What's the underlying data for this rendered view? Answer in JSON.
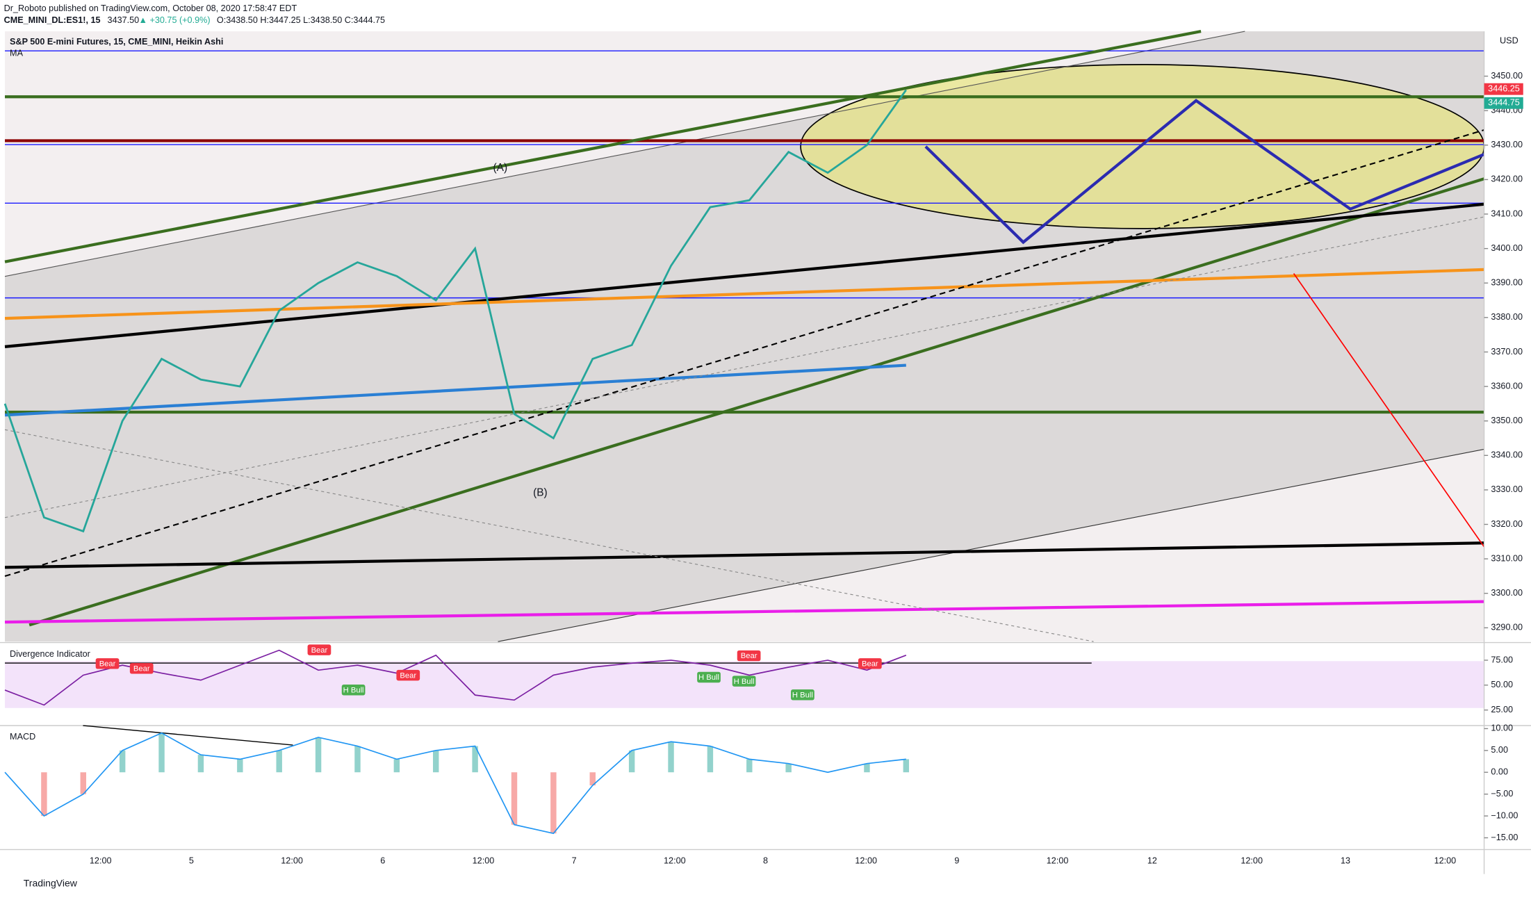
{
  "header": {
    "publisher": "Dr_Roboto published on TradingView.com, October 08, 2020 17:58:47 EDT",
    "symbol": "CME_MINI_DL:ES1!, 15",
    "last": "3437.50",
    "change": "▲ +30.75 (+0.9%)",
    "ohlc": "O:3438.50 H:3447.25 L:3438.50 C:3444.75"
  },
  "footer": {
    "brand": "TradingView"
  },
  "chart_data": [
    {
      "type": "line",
      "title": "S&P 500 E-mini Futures, 15, CME_MINI, Heikin Ashi",
      "indicator": "MA",
      "currency": "USD",
      "annotations": [
        "(A)",
        "(B)"
      ],
      "price_tags": [
        {
          "value": 3446.25,
          "label": "3446.25",
          "color": "#f23645"
        },
        {
          "value": 3444.75,
          "label": "3444.75",
          "color": "#22ab94"
        }
      ],
      "color": "#26a69a",
      "values": [
        3355,
        3322,
        3318,
        3350,
        3368,
        3362,
        3360,
        3382,
        3390,
        3396,
        3392,
        3385,
        3400,
        3352,
        3345,
        3368,
        3372,
        3395,
        3412,
        3414,
        3428,
        3422,
        3430,
        3446
      ],
      "ylim": [
        3286,
        3463
      ],
      "yticks": [
        {
          "value": 3290,
          "label": "3290.00"
        },
        {
          "value": 3300,
          "label": "3300.00"
        },
        {
          "value": 3310,
          "label": "3310.00"
        },
        {
          "value": 3320,
          "label": "3320.00"
        },
        {
          "value": 3330,
          "label": "3330.00"
        },
        {
          "value": 3340,
          "label": "3340.00"
        },
        {
          "value": 3350,
          "label": "3350.00"
        },
        {
          "value": 3360,
          "label": "3360.00"
        },
        {
          "value": 3370,
          "label": "3370.00"
        },
        {
          "value": 3380,
          "label": "3380.00"
        },
        {
          "value": 3390,
          "label": "3390.00"
        },
        {
          "value": 3400,
          "label": "3400.00"
        },
        {
          "value": 3410,
          "label": "3410.00"
        },
        {
          "value": 3420,
          "label": "3420.00"
        },
        {
          "value": 3430,
          "label": "3430.00"
        },
        {
          "value": 3440,
          "label": "3440.00"
        },
        {
          "value": 3450,
          "label": "3450.00"
        }
      ],
      "xticks": [
        "12:00",
        "5",
        "12:00",
        "6",
        "12:00",
        "7",
        "12:00",
        "8",
        "12:00",
        "9",
        "12:00",
        "12",
        "12:00",
        "13",
        "12:00"
      ]
    },
    {
      "type": "line",
      "title": "Divergence Indicator",
      "color": "#7b1fa2",
      "signals": [
        "Bear",
        "Bear",
        "Bear",
        "H Bull",
        "Bear",
        "H Bull",
        "H Bull",
        "Bear",
        "H Bull",
        "Bear"
      ],
      "values": [
        45,
        30,
        60,
        70,
        62,
        55,
        70,
        85,
        65,
        70,
        62,
        80,
        40,
        35,
        60,
        68,
        72,
        75,
        70,
        60,
        68,
        75,
        65,
        80
      ],
      "ylim": [
        9.4,
        92.7
      ],
      "yticks": [
        {
          "value": 25,
          "label": "25.00"
        },
        {
          "value": 50,
          "label": "50.00"
        },
        {
          "value": 75,
          "label": "75.00"
        }
      ]
    },
    {
      "type": "line",
      "title": "MACD",
      "color": "#2196f3",
      "values": [
        0,
        -10,
        -5,
        5,
        9,
        4,
        3,
        5,
        8,
        6,
        3,
        5,
        6,
        -12,
        -14,
        -3,
        5,
        7,
        6,
        3,
        2,
        0,
        2,
        3
      ],
      "ylim": [
        -17.7,
        10.7
      ],
      "yticks": [
        {
          "value": -15,
          "label": "−15.00"
        },
        {
          "value": -10,
          "label": "−10.00"
        },
        {
          "value": -5,
          "label": "−5.00"
        },
        {
          "value": 0,
          "label": "0.00"
        },
        {
          "value": 5,
          "label": "5.00"
        },
        {
          "value": 10,
          "label": "10.00"
        }
      ]
    }
  ]
}
